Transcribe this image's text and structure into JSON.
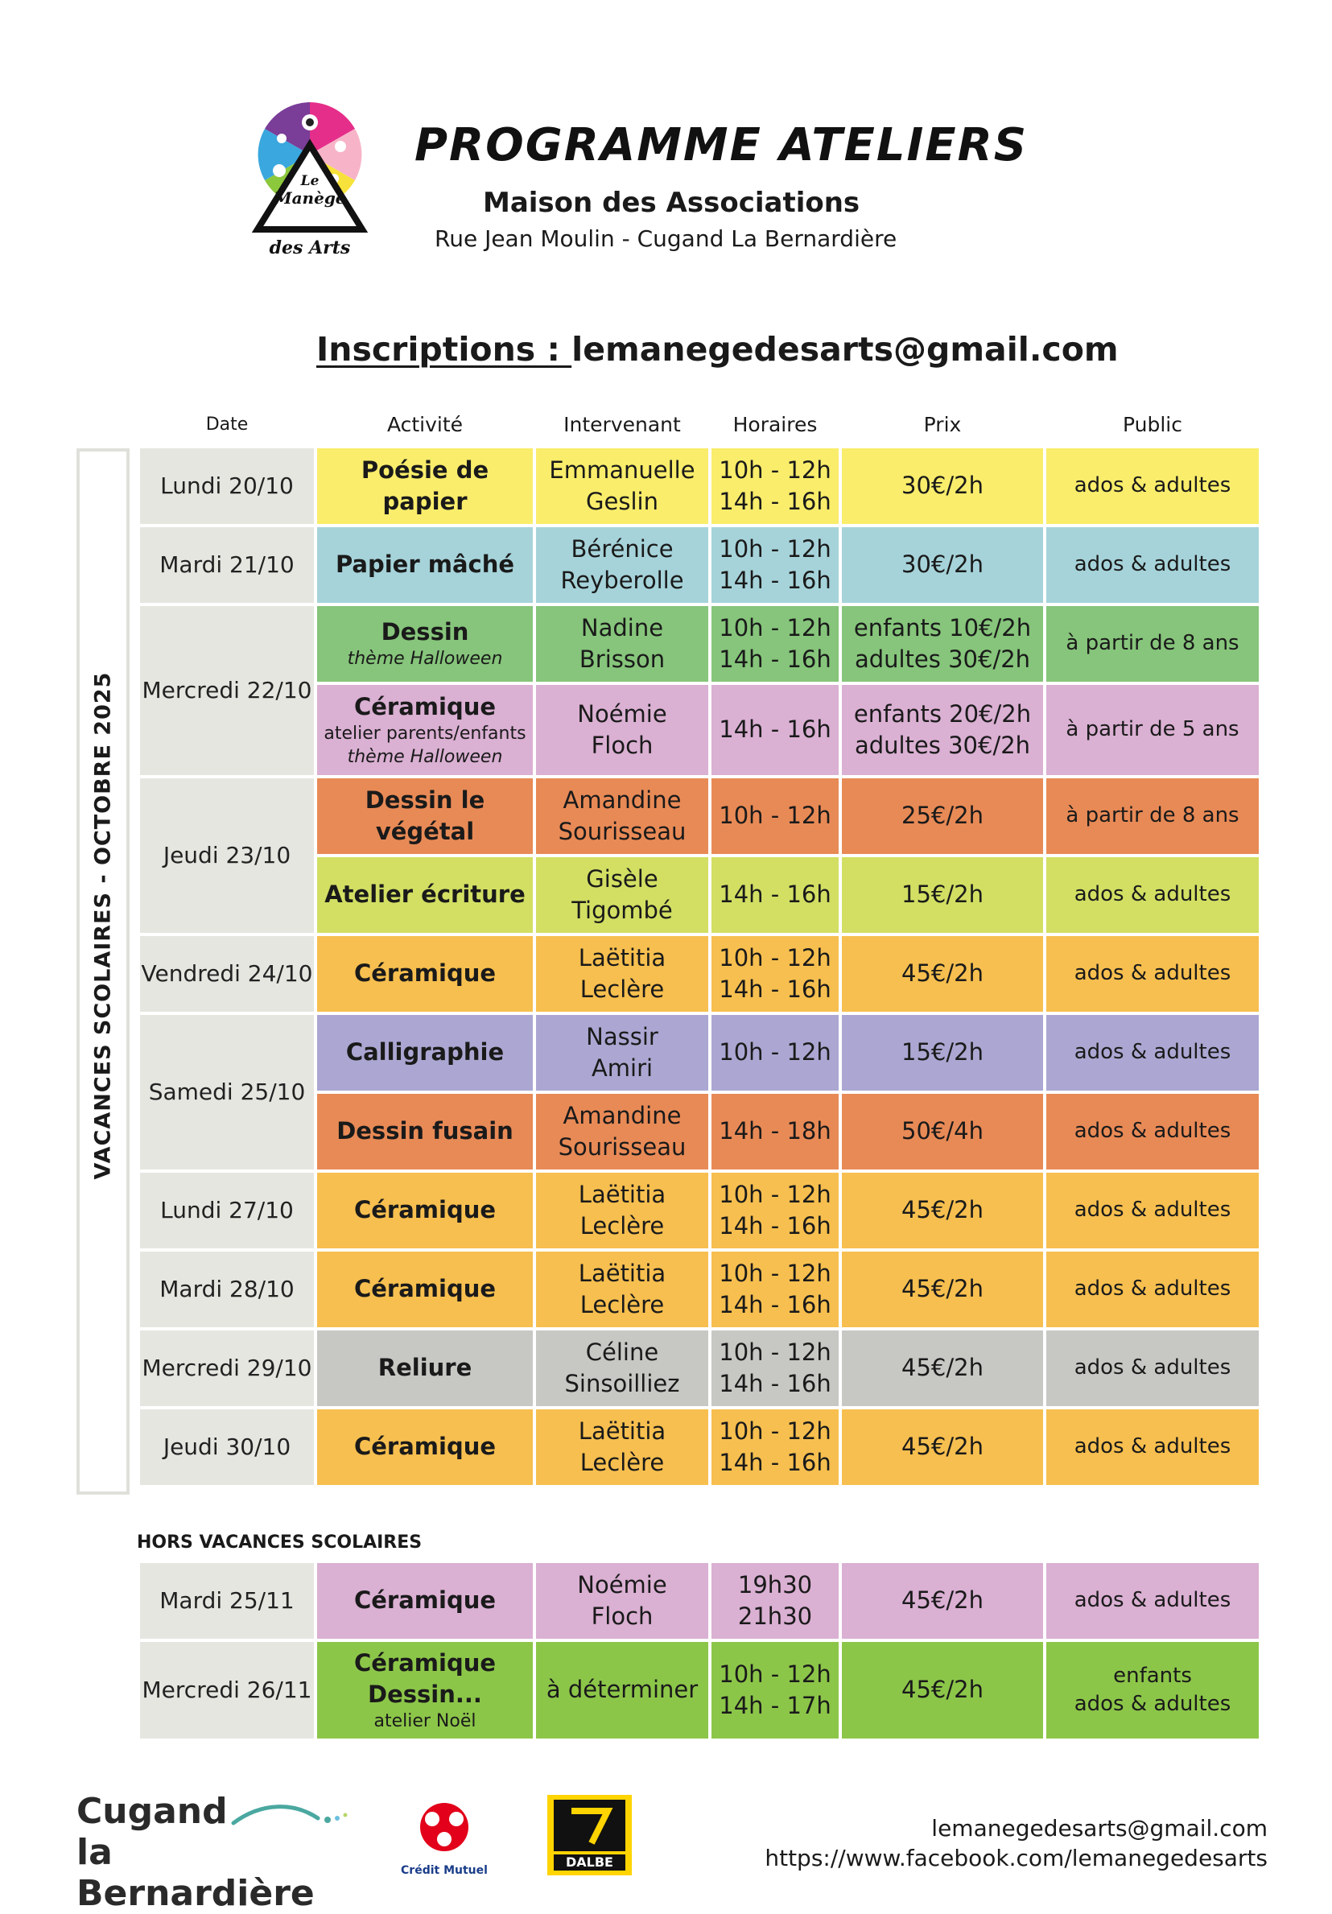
{
  "header": {
    "title": "PROGRAMME ATELIERS",
    "subtitle": "Maison des Associations",
    "address": "Rue Jean Moulin - Cugand La Bernardière",
    "inscriptions_label": "Inscriptions : ",
    "inscriptions_email": "lemanegedesarts@gmail.com"
  },
  "logo": {
    "line1": "Le",
    "line2": "Manège",
    "line3": "des Arts"
  },
  "columns": {
    "date": "Date",
    "activity": "Activité",
    "instructor": "Intervenant",
    "hours": "Horaires",
    "price": "Prix",
    "audience": "Public"
  },
  "side_label": "VACANCES SCOLAIRES  -  OCTOBRE 2025",
  "rows": [
    {
      "date": "Lundi 20/10",
      "activity": "Poésie de papier",
      "instructor": [
        "Emmanuelle",
        "Geslin"
      ],
      "hours": [
        "10h - 12h",
        "14h - 16h"
      ],
      "price": [
        "30€/2h"
      ],
      "audience": "ados & adultes",
      "color": "#f9ed6b"
    },
    {
      "date": "Mardi 21/10",
      "activity": "Papier mâché",
      "instructor": [
        "Bérénice",
        "Reyberolle"
      ],
      "hours": [
        "10h - 12h",
        "14h - 16h"
      ],
      "price": [
        "30€/2h"
      ],
      "audience": "ados & adultes",
      "color": "#a6d3da"
    },
    {
      "date": "Mercredi 22/10",
      "activity": "Dessin",
      "sub": "thème Halloween",
      "instructor": [
        "Nadine",
        "Brisson"
      ],
      "hours": [
        "10h - 12h",
        "14h - 16h"
      ],
      "price": [
        "enfants 10€/2h",
        "adultes 30€/2h"
      ],
      "audience": "à partir de 8 ans",
      "color": "#86c57b"
    },
    {
      "activity": "Céramique",
      "sub_plain": "atelier parents/enfants",
      "sub": "thème Halloween",
      "instructor": [
        "Noémie",
        "Floch"
      ],
      "hours": [
        "14h - 16h"
      ],
      "price": [
        "enfants 20€/2h",
        "adultes 30€/2h"
      ],
      "audience": "à partir de 5 ans",
      "color": "#dab0d3"
    },
    {
      "date": "Jeudi 23/10",
      "activity": "Dessin le végétal",
      "instructor": [
        "Amandine",
        "Sourisseau"
      ],
      "hours": [
        "10h - 12h"
      ],
      "price": [
        "25€/2h"
      ],
      "audience": "à partir de 8 ans",
      "color": "#e88a56"
    },
    {
      "activity": "Atelier écriture",
      "instructor": [
        "Gisèle",
        "Tigombé"
      ],
      "hours": [
        "14h - 16h"
      ],
      "price": [
        "15€/2h"
      ],
      "audience": "ados & adultes",
      "color": "#d2df63"
    },
    {
      "date": "Vendredi 24/10",
      "activity": "Céramique",
      "instructor": [
        "Laëtitia",
        "Leclère"
      ],
      "hours": [
        "10h - 12h",
        "14h - 16h"
      ],
      "price": [
        "45€/2h"
      ],
      "audience": "ados & adultes",
      "color": "#f7bf4f"
    },
    {
      "date": "Samedi 25/10",
      "activity": "Calligraphie",
      "instructor": [
        "Nassir",
        "Amiri"
      ],
      "hours": [
        "10h - 12h"
      ],
      "price": [
        "15€/2h"
      ],
      "audience": "ados & adultes",
      "color": "#aba7d2"
    },
    {
      "activity": "Dessin fusain",
      "instructor": [
        "Amandine",
        "Sourisseau"
      ],
      "hours": [
        "14h - 18h"
      ],
      "price": [
        "50€/4h"
      ],
      "audience": "ados & adultes",
      "color": "#e88a56"
    },
    {
      "date": "Lundi 27/10",
      "activity": "Céramique",
      "instructor": [
        "Laëtitia",
        "Leclère"
      ],
      "hours": [
        "10h - 12h",
        "14h - 16h"
      ],
      "price": [
        "45€/2h"
      ],
      "audience": "ados & adultes",
      "color": "#f7bf4f"
    },
    {
      "date": "Mardi 28/10",
      "activity": "Céramique",
      "instructor": [
        "Laëtitia",
        "Leclère"
      ],
      "hours": [
        "10h - 12h",
        "14h - 16h"
      ],
      "price": [
        "45€/2h"
      ],
      "audience": "ados & adultes",
      "color": "#f7bf4f"
    },
    {
      "date": "Mercredi 29/10",
      "activity": "Reliure",
      "instructor": [
        "Céline",
        "Sinsoilliez"
      ],
      "hours": [
        "10h - 12h",
        "14h - 16h"
      ],
      "price": [
        "45€/2h"
      ],
      "audience": "ados & adultes",
      "color": "#c7c8c4"
    },
    {
      "date": "Jeudi 30/10",
      "activity": "Céramique",
      "instructor": [
        "Laëtitia",
        "Leclère"
      ],
      "hours": [
        "10h - 12h",
        "14h - 16h"
      ],
      "price": [
        "45€/2h"
      ],
      "audience": "ados & adultes",
      "color": "#f7bf4f"
    }
  ],
  "hors_label": "HORS VACANCES SCOLAIRES",
  "hors_rows": [
    {
      "date": "Mardi 25/11",
      "activity": "Céramique",
      "instructor": [
        "Noémie",
        "Floch"
      ],
      "hours": [
        "19h30",
        "21h30"
      ],
      "price": [
        "45€/2h"
      ],
      "audience": [
        "ados & adultes"
      ],
      "color": "#dab0d3"
    },
    {
      "date": "Mercredi 26/11",
      "activity": "Céramique",
      "activity2": "Dessin...",
      "sub_plain": "atelier Noël",
      "instructor": [
        "à déterminer"
      ],
      "hours": [
        "10h - 12h",
        "14h - 17h"
      ],
      "price": [
        "45€/2h"
      ],
      "audience": [
        "enfants",
        "ados & adultes"
      ],
      "color": "#8cc649"
    }
  ],
  "footer": {
    "cugand_line1": "Cugand",
    "cugand_line2": "la Bernardière",
    "credit_mutuel": "Crédit Mutuel",
    "dalbe": "DALBE",
    "email": "lemanegedesarts@gmail.com",
    "facebook": "https://www.facebook.com/lemanegedesarts"
  }
}
